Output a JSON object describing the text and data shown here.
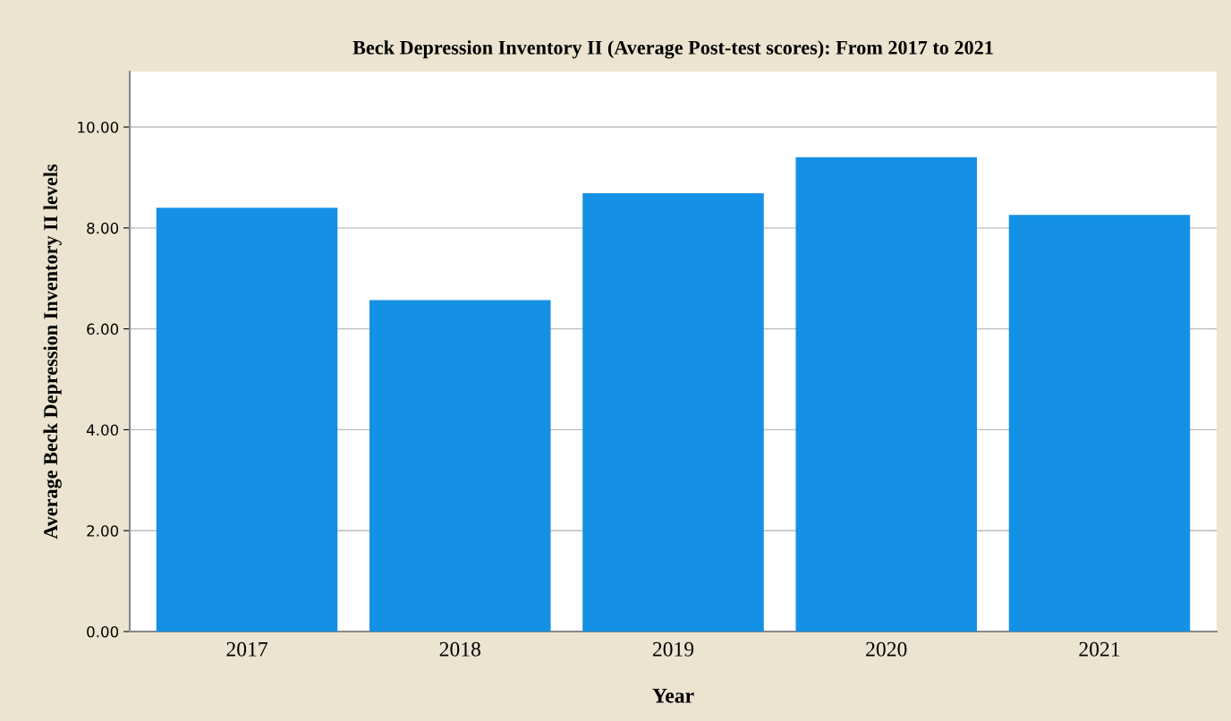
{
  "chart_data": {
    "type": "bar",
    "title": "Beck Depression Inventory II (Average Post-test scores): From 2017 to 2021",
    "xlabel": "Year",
    "ylabel": "Average Beck Depression Inventory II levels",
    "categories": [
      "2017",
      "2018",
      "2019",
      "2020",
      "2021"
    ],
    "values": [
      8.4,
      6.57,
      8.69,
      9.4,
      8.26
    ],
    "color": "#1490e4",
    "ylim": [
      0,
      11.1
    ],
    "yticks": [
      {
        "value": 0,
        "label": "0.00"
      },
      {
        "value": 2,
        "label": "2.00"
      },
      {
        "value": 4,
        "label": "4.00"
      },
      {
        "value": 6,
        "label": "6.00"
      },
      {
        "value": 8,
        "label": "8.00"
      },
      {
        "value": 10,
        "label": "10.00"
      }
    ],
    "grid": "y"
  }
}
